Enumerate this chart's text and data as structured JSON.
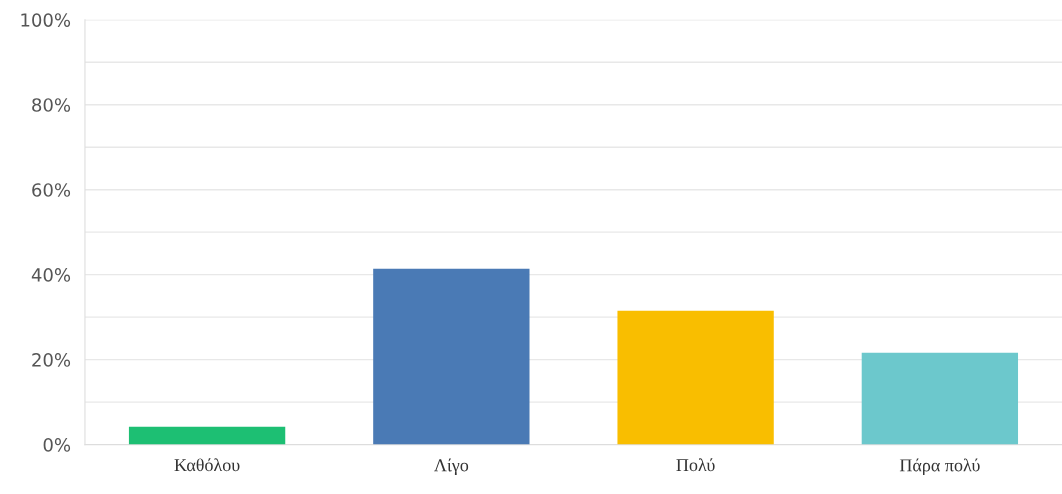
{
  "chart_data": {
    "type": "bar",
    "categories": [
      "Καθόλου",
      "Λίγο",
      "Πολύ",
      "Πάρα πολύ"
    ],
    "values": [
      4.2,
      41.4,
      31.5,
      21.6
    ],
    "colors": [
      "#1dbf73",
      "#4a7ab5",
      "#f9be00",
      "#6cc8cc"
    ],
    "ylim": [
      0,
      100
    ],
    "yticks": [
      {
        "value": 0,
        "label": "0%"
      },
      {
        "value": 10,
        "label": null
      },
      {
        "value": 20,
        "label": "20%"
      },
      {
        "value": 30,
        "label": null
      },
      {
        "value": 40,
        "label": "40%"
      },
      {
        "value": 50,
        "label": null
      },
      {
        "value": 60,
        "label": "60%"
      },
      {
        "value": 70,
        "label": null
      },
      {
        "value": 80,
        "label": "80%"
      },
      {
        "value": 90,
        "label": null
      },
      {
        "value": 100,
        "label": "100%"
      }
    ],
    "grid": "y"
  }
}
